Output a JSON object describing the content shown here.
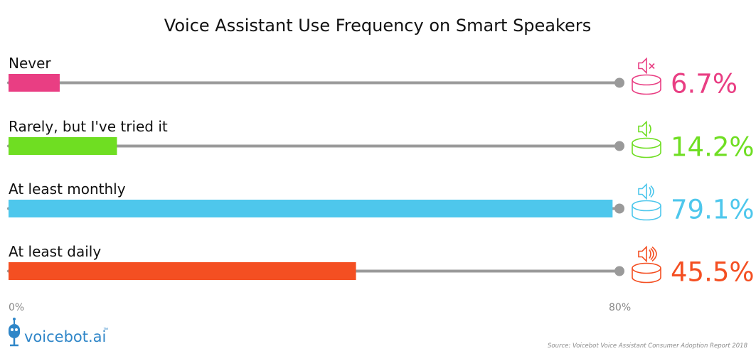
{
  "chart_data": {
    "type": "bar",
    "orientation": "horizontal",
    "title": "Voice Assistant Use Frequency on Smart Speakers",
    "categories": [
      "Never",
      "Rarely, but I've tried it",
      "At least monthly",
      "At least daily"
    ],
    "values": [
      6.7,
      14.2,
      79.1,
      45.5
    ],
    "value_labels": [
      "6.7%",
      "14.2%",
      "79.1%",
      "45.5%"
    ],
    "colors": [
      "#e93e83",
      "#6fde22",
      "#4ec7ec",
      "#f44f22"
    ],
    "icons": [
      "speaker-muted-icon",
      "speaker-low-icon",
      "speaker-medium-icon",
      "speaker-loud-icon"
    ],
    "xlim": [
      0,
      80
    ],
    "x_tick_labels": [
      "0%",
      "80%"
    ],
    "track_color": "#9a9a9a"
  },
  "branding": {
    "logo_text": "voicebot.ai",
    "logo_mark": "™",
    "source": "Source: Voicebot Voice Assistant Consumer Adoption Report 2018"
  }
}
